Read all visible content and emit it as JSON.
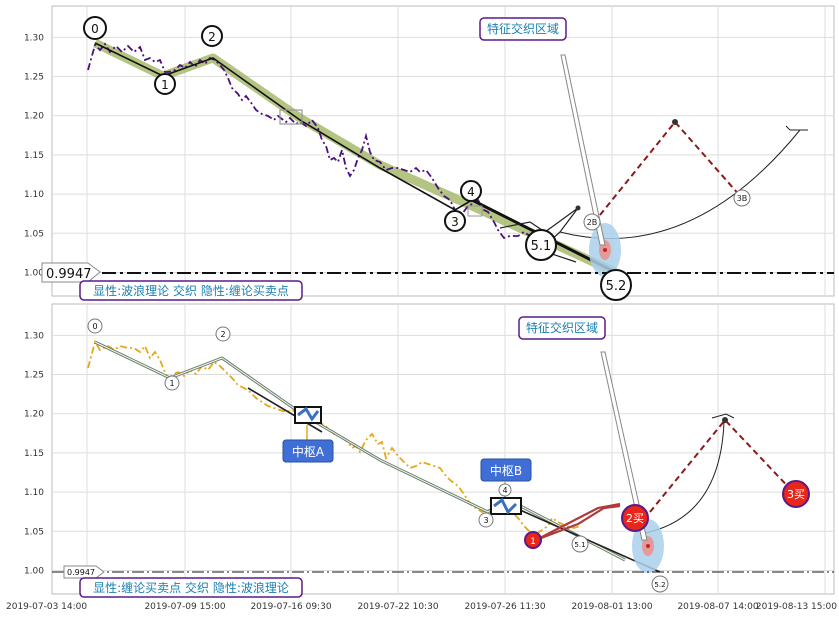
{
  "chart_data": [
    {
      "type": "line",
      "title": "",
      "ylim": [
        0.97,
        1.34
      ],
      "yticks": [
        "1.00",
        "1.05",
        "1.10",
        "1.15",
        "1.20",
        "1.25",
        "1.30"
      ],
      "grid": true,
      "series": [
        {
          "values": [
            [
              0,
              1.255
            ],
            [
              1,
              1.29
            ],
            [
              2,
              1.28
            ],
            [
              3,
              1.285
            ],
            [
              4,
              1.28
            ],
            [
              5,
              1.27
            ],
            [
              6,
              1.29
            ],
            [
              7,
              1.26
            ],
            [
              8,
              1.25
            ],
            [
              9,
              1.255
            ],
            [
              10,
              1.26
            ],
            [
              11,
              1.25
            ],
            [
              12,
              1.26
            ],
            [
              13,
              1.24
            ],
            [
              14,
              1.22
            ],
            [
              15,
              1.21
            ],
            [
              16,
              1.2
            ],
            [
              17,
              1.19
            ],
            [
              18,
              1.2
            ],
            [
              19,
              1.18
            ],
            [
              20,
              1.16
            ],
            [
              21,
              1.15
            ],
            [
              22,
              1.13
            ],
            [
              23,
              1.14
            ],
            [
              24,
              1.16
            ],
            [
              25,
              1.14
            ],
            [
              26,
              1.12
            ],
            [
              27,
              1.13
            ],
            [
              28,
              1.11
            ],
            [
              29,
              1.1
            ],
            [
              30,
              1.09
            ],
            [
              31,
              1.08
            ],
            [
              32,
              1.075
            ],
            [
              33,
              1.07
            ],
            [
              34,
              1.06
            ],
            [
              35,
              1.04
            ],
            [
              36,
              1.05
            ],
            [
              37,
              1.03
            ],
            [
              38,
              1.02
            ]
          ]
        }
      ],
      "wave_points": [
        {
          "label": "0",
          "x": 1,
          "y": 1.29
        },
        {
          "label": "1",
          "x": 7,
          "y": 1.25
        },
        {
          "label": "2",
          "x": 12,
          "y": 1.27
        },
        {
          "label": "3",
          "x": 37,
          "y": 1.07
        },
        {
          "label": "4",
          "x": 39,
          "y": 1.09
        },
        {
          "label": "5.1",
          "x": 46,
          "y": 1.04
        },
        {
          "label": "5.2",
          "x": 51,
          "y": 0.995
        }
      ],
      "hline": {
        "value": 0.9947,
        "label": "0.9947"
      },
      "annotation_box": "特征交织区域",
      "bottom_label": "显性:波浪理论 交织 隐性:缠论买卖点",
      "mini_labels": [
        "2B",
        "3B"
      ]
    },
    {
      "type": "line",
      "title": "",
      "ylim": [
        0.97,
        1.34
      ],
      "yticks": [
        "1.00",
        "1.05",
        "1.10",
        "1.15",
        "1.20",
        "1.25",
        "1.30"
      ],
      "grid": true,
      "xtick_labels": [
        "2019-07-03 14:00",
        "2019-07-09 15:00",
        "2019-07-16 09:30",
        "2019-07-22 10:30",
        "2019-07-26 11:30",
        "2019-08-01 13:00",
        "2019-08-07 14:00",
        "2019-08-13 15:00"
      ],
      "wave_points": [
        {
          "label": "0",
          "x": 1,
          "y": 1.29
        },
        {
          "label": "1",
          "x": 7,
          "y": 1.25
        },
        {
          "label": "2",
          "x": 12,
          "y": 1.27
        },
        {
          "label": "3",
          "x": 37,
          "y": 1.07
        },
        {
          "label": "4",
          "x": 39,
          "y": 1.09
        },
        {
          "label": "5.1",
          "x": 46,
          "y": 1.04
        },
        {
          "label": "5.2",
          "x": 51,
          "y": 0.995
        }
      ],
      "pivots": [
        "中枢A",
        "中枢B"
      ],
      "buy_points": [
        "1",
        "2买",
        "3买"
      ],
      "hline": {
        "value": 0.9947,
        "label": "0.9947"
      },
      "annotation_box": "特征交织区域",
      "bottom_label": "显性:缠论买卖点 交织 隐性:波浪理论"
    }
  ]
}
